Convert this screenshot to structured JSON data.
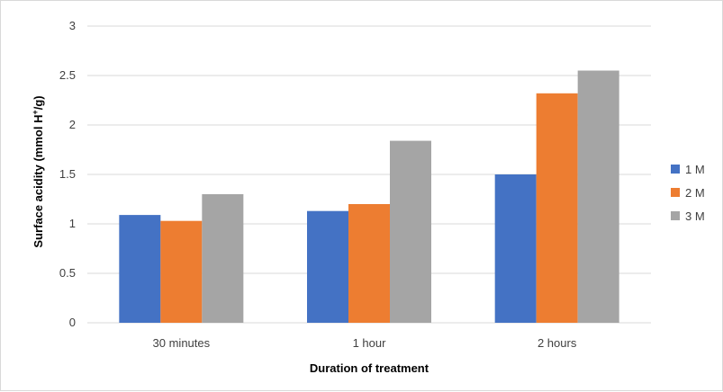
{
  "colors": {
    "s1": "#4472C4",
    "s2": "#ED7D31",
    "s3": "#A5A5A5",
    "grid": "#d9d9d9"
  },
  "chart_data": {
    "type": "bar",
    "title": "",
    "xlabel": "Duration of treatment",
    "ylabel": "Surface acidity (mmol H+/g)",
    "ylabel_main": "Surface acidity (mmol H",
    "ylabel_sup": "+",
    "ylabel_tail": "/g)",
    "categories": [
      "30 minutes",
      "1 hour",
      "2 hours"
    ],
    "series": [
      {
        "name": "1 M",
        "values": [
          1.09,
          1.13,
          1.5
        ]
      },
      {
        "name": "2 M",
        "values": [
          1.03,
          1.2,
          2.32
        ]
      },
      {
        "name": "3 M",
        "values": [
          1.3,
          1.84,
          2.55
        ]
      }
    ],
    "ylim": [
      0,
      3
    ],
    "yticks": [
      "0",
      "0.5",
      "1",
      "1.5",
      "2",
      "2.5",
      "3"
    ],
    "grid": true,
    "legend_position": "right"
  }
}
